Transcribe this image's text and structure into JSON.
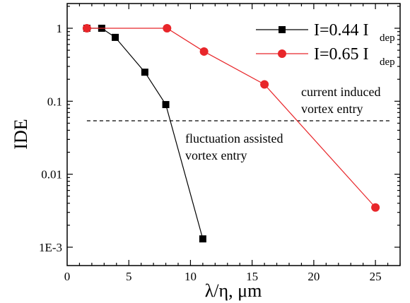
{
  "chart_data": {
    "type": "line",
    "xlabel": "λ/η, μm",
    "ylabel": "IDE",
    "xlim": [
      0,
      27
    ],
    "ylim": [
      0.001,
      2
    ],
    "yscale": "log",
    "xticks": [
      0,
      5,
      10,
      15,
      20,
      25
    ],
    "xtick_labels": [
      "0",
      "5",
      "10",
      "15",
      "20",
      "25"
    ],
    "yticks": [
      0.001,
      0.01,
      0.1,
      1
    ],
    "ytick_labels": [
      "1E-3",
      "0.01",
      "0.1",
      "1"
    ],
    "grid": false,
    "legend_position": "top-right",
    "series": [
      {
        "label_main": "I=0.44 I",
        "label_sub": "dep",
        "color": "#000000",
        "marker": "square",
        "x": [
          1.6,
          2.8,
          3.9,
          6.3,
          8.0,
          11.0
        ],
        "y": [
          1.0,
          1.0,
          0.75,
          0.25,
          0.09,
          0.0013
        ]
      },
      {
        "label_main": "I=0.65 I",
        "label_sub": "dep",
        "color": "#e8262a",
        "marker": "circle",
        "x": [
          1.6,
          8.1,
          11.1,
          16.0,
          25.0
        ],
        "y": [
          1.0,
          1.0,
          0.48,
          0.17,
          0.0035
        ]
      }
    ],
    "threshold": {
      "y": 0.054,
      "style": "dashed"
    },
    "annotations": [
      {
        "lines": [
          "current induced",
          "vortex entry"
        ]
      },
      {
        "lines": [
          "fluctuation assisted",
          "vortex entry"
        ]
      }
    ]
  }
}
